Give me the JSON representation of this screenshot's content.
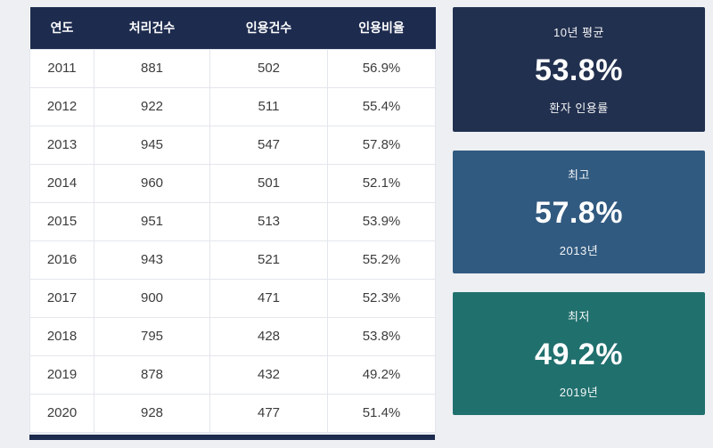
{
  "page": {
    "background": "#edeff3"
  },
  "chart_data": {
    "type": "table",
    "columns": [
      "연도",
      "처리건수",
      "인용건수",
      "인용비율"
    ],
    "rows": [
      [
        "2011",
        "881",
        "502",
        "56.9%"
      ],
      [
        "2012",
        "922",
        "511",
        "55.4%"
      ],
      [
        "2013",
        "945",
        "547",
        "57.8%"
      ],
      [
        "2014",
        "960",
        "501",
        "52.1%"
      ],
      [
        "2015",
        "951",
        "513",
        "53.9%"
      ],
      [
        "2016",
        "943",
        "521",
        "55.2%"
      ],
      [
        "2017",
        "900",
        "471",
        "52.3%"
      ],
      [
        "2018",
        "795",
        "428",
        "53.8%"
      ],
      [
        "2019",
        "878",
        "432",
        "49.2%"
      ],
      [
        "2020",
        "928",
        "477",
        "51.4%"
      ]
    ],
    "header_bg": "#1d2b4e",
    "footer_bar_color": "#1d2b4e"
  },
  "cards": [
    {
      "label_top": "10년 평균",
      "value": "53.8%",
      "label_bottom": "환자 인용률",
      "bg": "#22304f"
    },
    {
      "label_top": "최고",
      "value": "57.8%",
      "label_bottom": "2013년",
      "bg": "#315a80"
    },
    {
      "label_top": "최저",
      "value": "49.2%",
      "label_bottom": "2019년",
      "bg": "#20706e"
    }
  ]
}
